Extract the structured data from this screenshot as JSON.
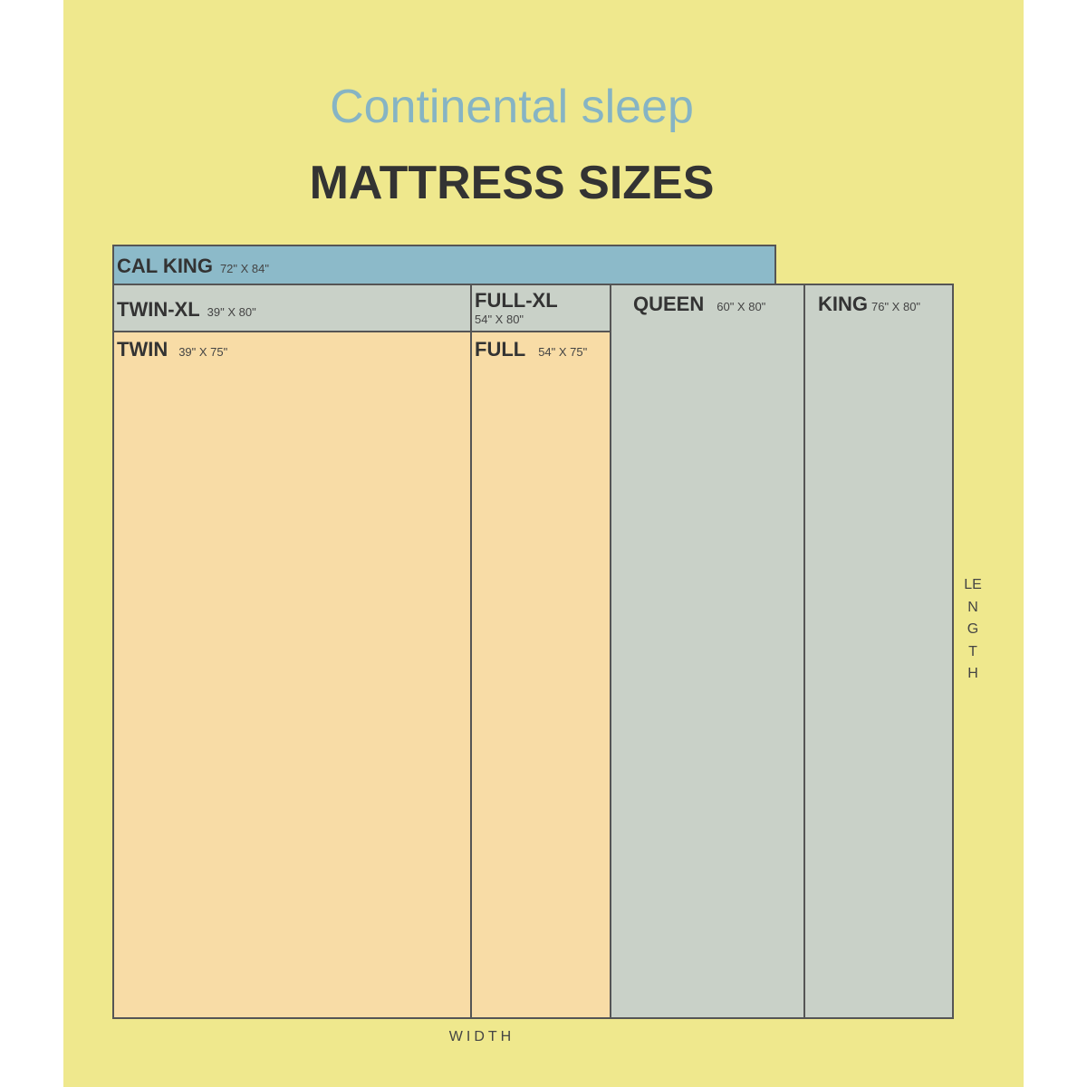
{
  "brand": "Continental sleep",
  "heading": "MATTRESS SIZES",
  "colors": {
    "background": "#efe88d",
    "cal_king": "#8cbac9",
    "xl_and_large": "#c9d1c8",
    "standard": "#f8dca6"
  },
  "mattresses": {
    "cal_king": {
      "name": "CAL KING",
      "dims": "72\" X 84\""
    },
    "twin_xl": {
      "name": "TWIN-XL",
      "dims": "39\" X 80\""
    },
    "full_xl": {
      "name": "FULL-XL",
      "dims": "54\" X 80\""
    },
    "queen": {
      "name": "QUEEN",
      "dims": "60\" X 80\""
    },
    "king": {
      "name": "KING",
      "dims": "76\" X 80\""
    },
    "twin": {
      "name": "TWIN",
      "dims": "39\" X 75\""
    },
    "full": {
      "name": "FULL",
      "dims": "54\" X 75\""
    }
  },
  "axes": {
    "width": "WIDTH",
    "length": "LENGTH"
  }
}
